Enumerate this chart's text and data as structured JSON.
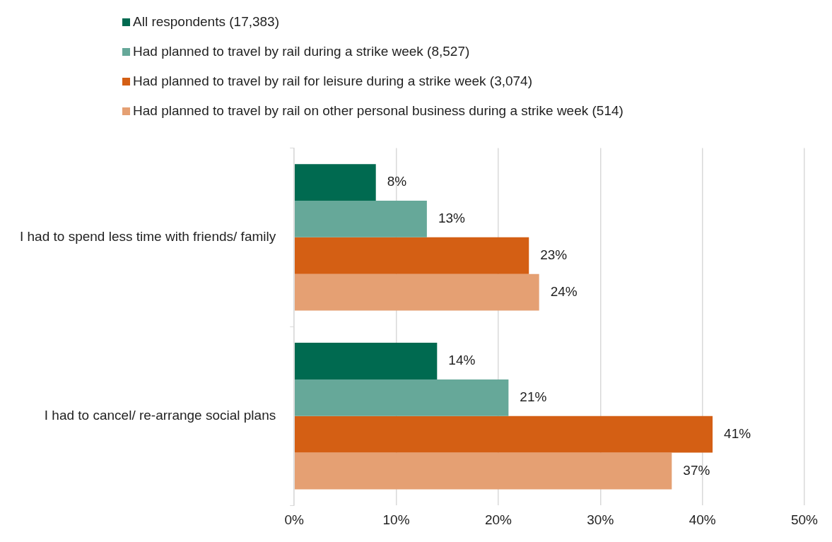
{
  "chart_data": {
    "type": "bar",
    "orientation": "horizontal",
    "categories": [
      "I had to spend less time with friends/ family",
      "I had to cancel/ re-arrange social plans"
    ],
    "series": [
      {
        "name": "All respondents (17,383)",
        "color": "#006a50",
        "values": [
          8,
          14
        ],
        "value_labels": [
          "8%",
          "14%"
        ]
      },
      {
        "name": "Had planned to travel by rail during a strike week (8,527)",
        "color": "#66a899",
        "values": [
          13,
          21
        ],
        "value_labels": [
          "13%",
          "21%"
        ]
      },
      {
        "name": "Had planned to travel by rail for leisure during a strike week (3,074)",
        "color": "#d45f14",
        "values": [
          23,
          41
        ],
        "value_labels": [
          "23%",
          "41%"
        ]
      },
      {
        "name": "Had planned to travel by rail on other personal business during a strike week (514)",
        "color": "#e5a073",
        "values": [
          24,
          37
        ],
        "value_labels": [
          "24%",
          "37%"
        ]
      }
    ],
    "xlim": [
      0,
      50
    ],
    "xticks": [
      {
        "value": 0,
        "label": "0%"
      },
      {
        "value": 10,
        "label": "10%"
      },
      {
        "value": 20,
        "label": "20%"
      },
      {
        "value": 30,
        "label": "30%"
      },
      {
        "value": 40,
        "label": "40%"
      },
      {
        "value": 50,
        "label": "50%"
      }
    ],
    "grid": "x",
    "legend": "top"
  }
}
